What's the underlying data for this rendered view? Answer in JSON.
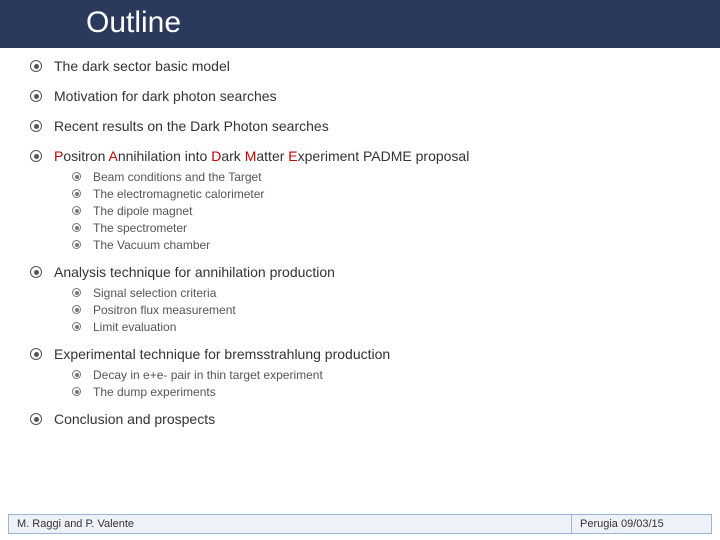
{
  "title": "Outline",
  "colors": {
    "title_bar_bg": "#2b3a5c",
    "title_text": "#ffffff",
    "body_text": "#333333",
    "sub_text": "#555555",
    "emphasis": "#c00000",
    "footer_bg": "#eef2f8",
    "footer_border": "#9db4d6"
  },
  "outline": {
    "item1": "The dark sector basic model",
    "item2": "Motivation for dark photon searches",
    "item3": "Recent results on the Dark Photon searches",
    "item4_prefix": "P",
    "item4_t1": "ositron ",
    "item4_a": "A",
    "item4_t2": "nnihilation into ",
    "item4_d": "D",
    "item4_t3": "ark ",
    "item4_m": "M",
    "item4_t4": "atter ",
    "item4_e": "E",
    "item4_t5": "xperiment PADME proposal",
    "item4_sub1": "Beam conditions and the Target",
    "item4_sub2": "The electromagnetic calorimeter",
    "item4_sub3": "The dipole magnet",
    "item4_sub4": "The spectrometer",
    "item4_sub5": "The Vacuum chamber",
    "item5": "Analysis technique for annihilation production",
    "item5_sub1": "Signal selection criteria",
    "item5_sub2": "Positron flux measurement",
    "item5_sub3": "Limit evaluation",
    "item6": "Experimental technique for bremsstrahlung production",
    "item6_sub1": "Decay in e+e- pair in thin target experiment",
    "item6_sub2": "The dump experiments",
    "item7": "Conclusion and prospects"
  },
  "footer": {
    "left": "M. Raggi and P. Valente",
    "right": "Perugia 09/03/15"
  }
}
